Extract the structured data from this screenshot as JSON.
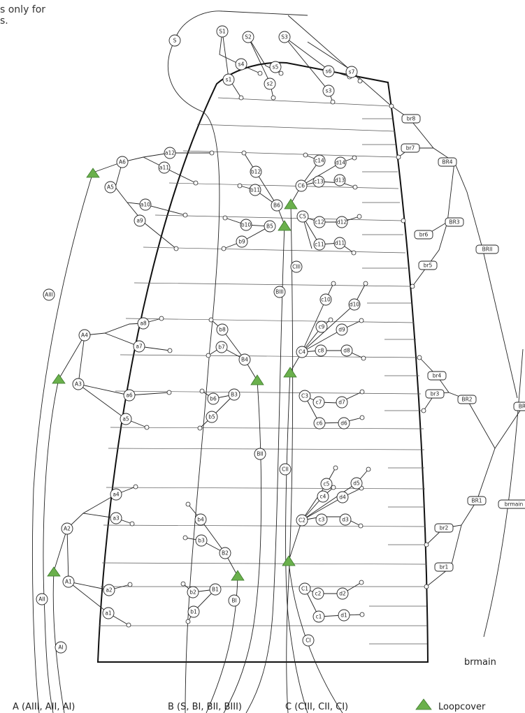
{
  "top_fragment": "s only for\ns.",
  "legend": {
    "a": "A (AIII, AII, AI)",
    "b": "B (S, BI, BII, BIII)",
    "c": "C (CIII, CII, CI)",
    "loop": "Loopcover"
  },
  "labels": {
    "brmain_text": "brmain"
  },
  "colors": {
    "loop": "#6ab04c",
    "line": "#222222"
  },
  "nodes": {
    "S": "S",
    "S1": "S1",
    "S2": "S2",
    "S3": "S3",
    "s1": "s1",
    "s2": "s2",
    "s3": "s3",
    "s4": "s4",
    "s5": "s5",
    "s6": "s6",
    "s7": "s7",
    "A6": "A6",
    "A5": "A5",
    "a12": "a12",
    "a11": "a11",
    "a10": "a10",
    "a9": "a9",
    "AIII": "AIII",
    "a8": "a8",
    "a7": "a7",
    "A4": "A4",
    "A3": "A3",
    "a6": "a6",
    "a5": "a5",
    "a4": "a4",
    "A2": "A2",
    "a3": "a3",
    "A1": "A1",
    "a2": "a2",
    "a1": "a1",
    "AII": "AII",
    "AI": "AI",
    "b12": "b12",
    "b11": "b11",
    "B6": "B6",
    "b10": "b10",
    "B5": "B5",
    "b9": "b9",
    "BIII": "BIII",
    "b8": "b8",
    "b7": "b7",
    "B4": "B4",
    "B3": "B3",
    "b6": "b6",
    "b5": "b5",
    "BII": "BII",
    "b4": "b4",
    "b3": "b3",
    "B2": "B2",
    "B1": "B1",
    "b2": "b2",
    "b1": "b1",
    "BI": "BI",
    "c14": "c14",
    "d14": "d14",
    "C6": "C6",
    "c13": "c13",
    "d13": "d13",
    "C5": "C5",
    "c12": "c12",
    "d12": "d12",
    "c11": "c11",
    "d11": "d11",
    "CIII": "CIII",
    "c10": "c10",
    "d10": "d10",
    "c9": "c9",
    "d9": "d9",
    "C4": "C4",
    "c8": "c8",
    "d8": "d8",
    "C3": "C3",
    "c7": "c7",
    "d7": "d7",
    "c6": "c6",
    "d6": "d6",
    "CII": "CII",
    "c5": "c5",
    "d5": "d5",
    "c4": "c4",
    "d4": "d4",
    "C2": "C2",
    "c3": "c3",
    "d3": "d3",
    "C1": "C1",
    "c2": "c2",
    "d2": "d2",
    "c1": "c1",
    "d1": "d1",
    "CI": "CI"
  },
  "pills": {
    "br8": "br8",
    "br7": "br7",
    "BR4": "BR4",
    "BR3": "BR3",
    "br6": "br6",
    "br5": "br5",
    "BRII": "BRII",
    "br4": "br4",
    "br3": "br3",
    "BR2": "BR2",
    "BRI": "BRI",
    "BR1": "BR1",
    "br2": "br2",
    "br1": "br1",
    "brmain": "brmain"
  }
}
